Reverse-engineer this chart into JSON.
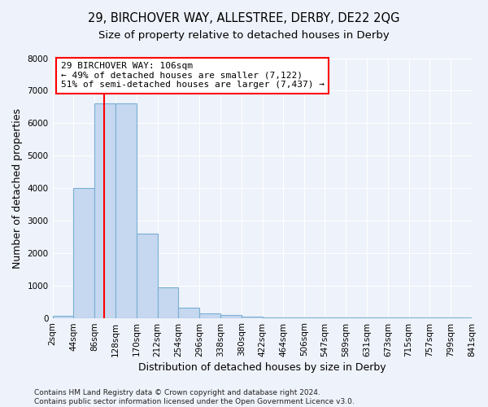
{
  "title": "29, BIRCHOVER WAY, ALLESTREE, DERBY, DE22 2QG",
  "subtitle": "Size of property relative to detached houses in Derby",
  "xlabel": "Distribution of detached houses by size in Derby",
  "ylabel": "Number of detached properties",
  "bar_color": "#c5d8ef",
  "bar_edge_color": "#7aafd4",
  "bin_edges": [
    2,
    44,
    86,
    128,
    170,
    212,
    254,
    296,
    338,
    380,
    422,
    464,
    506,
    547,
    589,
    631,
    673,
    715,
    757,
    799,
    841
  ],
  "bar_heights": [
    55,
    4000,
    6600,
    6600,
    2600,
    950,
    320,
    130,
    80,
    30,
    15,
    10,
    8,
    5,
    5,
    4,
    3,
    2,
    2,
    2
  ],
  "red_line_x": 106,
  "annotation_text": "29 BIRCHOVER WAY: 106sqm\n← 49% of detached houses are smaller (7,122)\n51% of semi-detached houses are larger (7,437) →",
  "ylim": [
    0,
    8000
  ],
  "yticks": [
    0,
    1000,
    2000,
    3000,
    4000,
    5000,
    6000,
    7000,
    8000
  ],
  "xtick_labels": [
    "2sqm",
    "44sqm",
    "86sqm",
    "128sqm",
    "170sqm",
    "212sqm",
    "254sqm",
    "296sqm",
    "338sqm",
    "380sqm",
    "422sqm",
    "464sqm",
    "506sqm",
    "547sqm",
    "589sqm",
    "631sqm",
    "673sqm",
    "715sqm",
    "757sqm",
    "799sqm",
    "841sqm"
  ],
  "footer": "Contains HM Land Registry data © Crown copyright and database right 2024.\nContains public sector information licensed under the Open Government Licence v3.0.",
  "background_color": "#eef2fa",
  "grid_color": "#ffffff",
  "title_fontsize": 10.5,
  "subtitle_fontsize": 9.5,
  "axis_label_fontsize": 9,
  "tick_fontsize": 7.5,
  "annotation_fontsize": 8,
  "footer_fontsize": 6.5
}
